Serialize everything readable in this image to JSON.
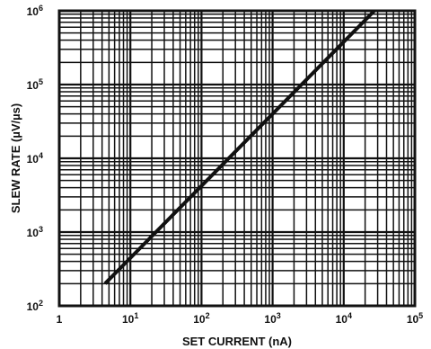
{
  "chart_data": {
    "type": "line",
    "xlabel": "SET CURRENT (nA)",
    "ylabel": "SLEW RATE (µV/µs)",
    "xscale": "log",
    "yscale": "log",
    "xlim": [
      1,
      100000
    ],
    "ylim": [
      100,
      1000000
    ],
    "grid": true,
    "x_ticks": [
      {
        "base": "1",
        "exp": ""
      },
      {
        "base": "10",
        "exp": "1"
      },
      {
        "base": "10",
        "exp": "2"
      },
      {
        "base": "10",
        "exp": "3"
      },
      {
        "base": "10",
        "exp": "4"
      },
      {
        "base": "10",
        "exp": "5"
      }
    ],
    "y_ticks": [
      {
        "base": "10",
        "exp": "2"
      },
      {
        "base": "10",
        "exp": "3"
      },
      {
        "base": "10",
        "exp": "4"
      },
      {
        "base": "10",
        "exp": "5"
      },
      {
        "base": "10",
        "exp": "6"
      }
    ],
    "series": [
      {
        "x": [
          4.4,
          27000
        ],
        "y": [
          200,
          1000000
        ]
      }
    ],
    "colors": {
      "line": "#111111",
      "grid": "#111111",
      "background": "#ffffff"
    }
  }
}
